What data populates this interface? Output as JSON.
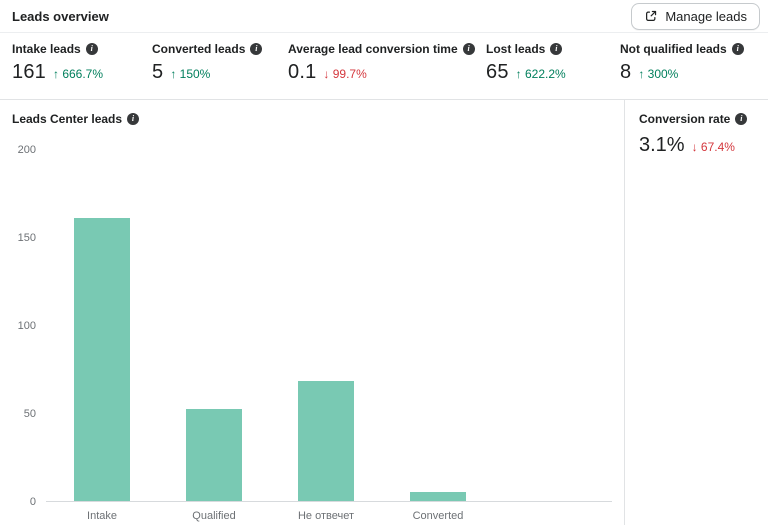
{
  "header": {
    "title": "Leads overview",
    "manage_button_label": "Manage leads",
    "manage_button_icon": "external-link-icon"
  },
  "kpis": [
    {
      "label": "Intake leads",
      "value": "161",
      "delta": "666.7%",
      "direction": "up",
      "icon": "info-icon"
    },
    {
      "label": "Converted leads",
      "value": "5",
      "delta": "150%",
      "direction": "up",
      "icon": "info-icon"
    },
    {
      "label": "Average lead conversion time",
      "value": "0.1",
      "delta": "99.7%",
      "direction": "down",
      "icon": "info-icon"
    },
    {
      "label": "Lost leads",
      "value": "65",
      "delta": "622.2%",
      "direction": "up",
      "icon": "info-icon"
    },
    {
      "label": "Not qualified leads",
      "value": "8",
      "delta": "300%",
      "direction": "up",
      "icon": "info-icon"
    }
  ],
  "chart_section": {
    "title": "Leads Center leads",
    "icon": "info-icon"
  },
  "conversion": {
    "label": "Conversion rate",
    "value": "3.1%",
    "delta": "67.4%",
    "direction": "down",
    "icon": "info-icon"
  },
  "chart_data": {
    "type": "bar",
    "title": "Leads Center leads",
    "categories": [
      "Intake",
      "Qualified",
      "Не отвечет",
      "Converted"
    ],
    "values": [
      161,
      52,
      68,
      5
    ],
    "xlabel": "",
    "ylabel": "",
    "ylim": [
      0,
      200
    ],
    "yticks": [
      0,
      50,
      100,
      150,
      200
    ],
    "grid": false,
    "legend": "none",
    "bar_color": "#79c9b3"
  },
  "colors": {
    "up": "#007f5c",
    "down": "#d4373d",
    "bar": "#79c9b3",
    "axis_text": "#6d7175",
    "divider": "#e1e3e5"
  }
}
